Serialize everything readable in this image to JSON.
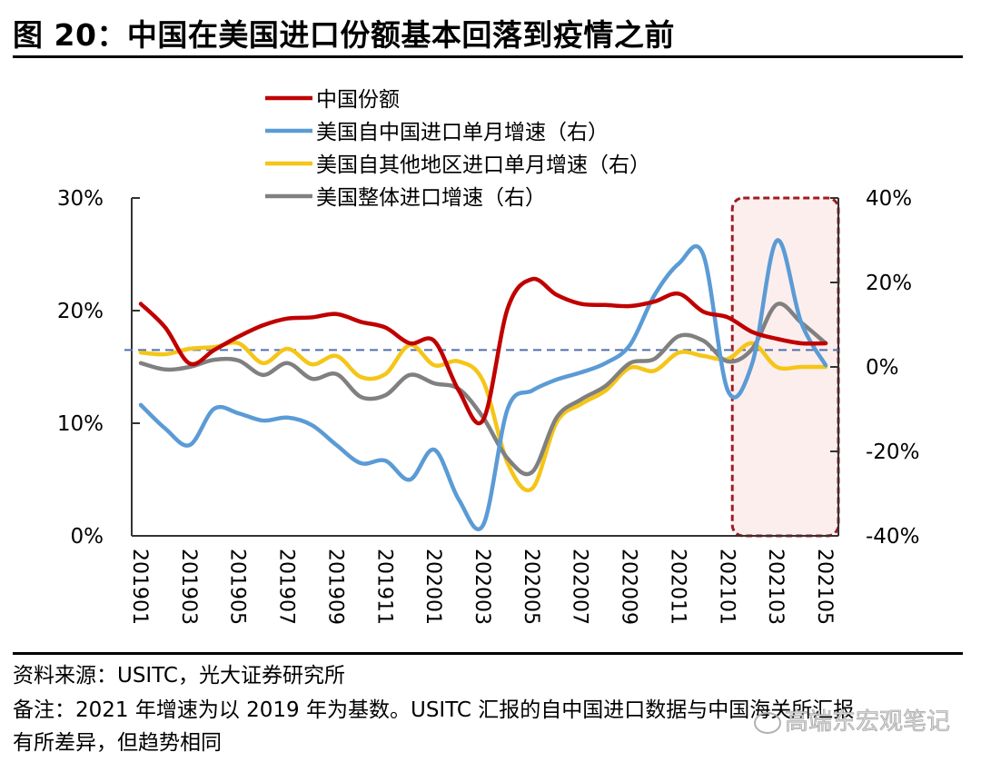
{
  "title": "图 20：中国在美国进口份额基本回落到疫情之前",
  "source": "资料来源：USITC，光大证券研究所",
  "note_line1": "备注：2021 年增速为以 2019 年为基数。USITC 汇报的自中国进口数据与中国海关所汇报",
  "note_line2": "有所差异，但趋势相同",
  "watermark": "高端东宏观笔记",
  "chart_data": {
    "type": "line",
    "title": "中国在美国进口份额基本回落到疫情之前",
    "xlabel": "",
    "ylabel_left": "",
    "ylabel_right": "",
    "x": [
      "201901",
      "201902",
      "201903",
      "201904",
      "201905",
      "201906",
      "201907",
      "201908",
      "201909",
      "201910",
      "201911",
      "201912",
      "202001",
      "202002",
      "202003",
      "202004",
      "202005",
      "202006",
      "202007",
      "202008",
      "202009",
      "202010",
      "202011",
      "202012",
      "202101",
      "202102",
      "202103",
      "202104",
      "202105"
    ],
    "x_tick_labels": [
      "201901",
      "201903",
      "201905",
      "201907",
      "201909",
      "201911",
      "202001",
      "202003",
      "202005",
      "202007",
      "202009",
      "202011",
      "202101",
      "202103",
      "202105"
    ],
    "ylim_left": [
      0,
      30
    ],
    "yticks_left": [
      "0%",
      "10%",
      "20%",
      "30%"
    ],
    "ylim_right": [
      -40,
      40
    ],
    "yticks_right": [
      "-40%",
      "-20%",
      "0%",
      "20%",
      "40%"
    ],
    "grid": false,
    "legend_position": "top-center",
    "reference_line": {
      "axis": "left",
      "value": 16.5,
      "style": "dashed",
      "color": "#4f6fad"
    },
    "highlight_region": {
      "from": "202102",
      "to": "202105",
      "color": "#fdeeee",
      "border": "#a01c22"
    },
    "series": [
      {
        "name": "中国份额",
        "axis": "left",
        "color": "#c00000",
        "values": [
          20.6,
          18.5,
          15.3,
          16.5,
          17.7,
          18.7,
          19.3,
          19.4,
          19.7,
          19.0,
          18.5,
          17.1,
          17.3,
          12.9,
          10.3,
          20.2,
          22.8,
          21.4,
          20.6,
          20.5,
          20.4,
          20.8,
          21.5,
          19.9,
          19.4,
          18.1,
          17.5,
          17.1,
          17.1
        ]
      },
      {
        "name": "美国自中国进口单月增速（右）",
        "axis": "right",
        "color": "#5b9bd5",
        "values": [
          -9.0,
          -14.6,
          -18.5,
          -9.9,
          -11.0,
          -12.7,
          -12.0,
          -13.8,
          -18.5,
          -22.8,
          -22.2,
          -26.7,
          -19.6,
          -31.4,
          -37.4,
          -9.9,
          -5.6,
          -3.0,
          -1.3,
          0.9,
          5.2,
          17.0,
          24.5,
          26.5,
          -5.6,
          0.9,
          29.9,
          10.5,
          0.4
        ]
      },
      {
        "name": "美国自其他地区进口单月增速（右）",
        "axis": "right",
        "color": "#f5c518",
        "values": [
          3.4,
          3.0,
          4.3,
          4.7,
          5.6,
          0.9,
          4.3,
          0.6,
          2.6,
          -2.4,
          -1.7,
          5.2,
          0.4,
          1.3,
          -3.4,
          -22.8,
          -28.8,
          -13.1,
          -8.8,
          -5.6,
          -0.2,
          -0.9,
          3.4,
          2.6,
          1.9,
          5.6,
          0.0,
          0.0,
          0.0
        ]
      },
      {
        "name": "美国整体进口增速（右）",
        "axis": "right",
        "color": "#808080",
        "values": [
          0.9,
          -0.6,
          0.0,
          1.7,
          1.5,
          -1.9,
          0.9,
          -2.8,
          -1.7,
          -7.1,
          -6.7,
          -1.9,
          -3.9,
          -5.2,
          -12.0,
          -21.7,
          -24.9,
          -12.0,
          -7.7,
          -4.5,
          0.9,
          1.9,
          7.3,
          6.2,
          1.3,
          4.3,
          14.8,
          10.5,
          5.6
        ]
      }
    ]
  }
}
